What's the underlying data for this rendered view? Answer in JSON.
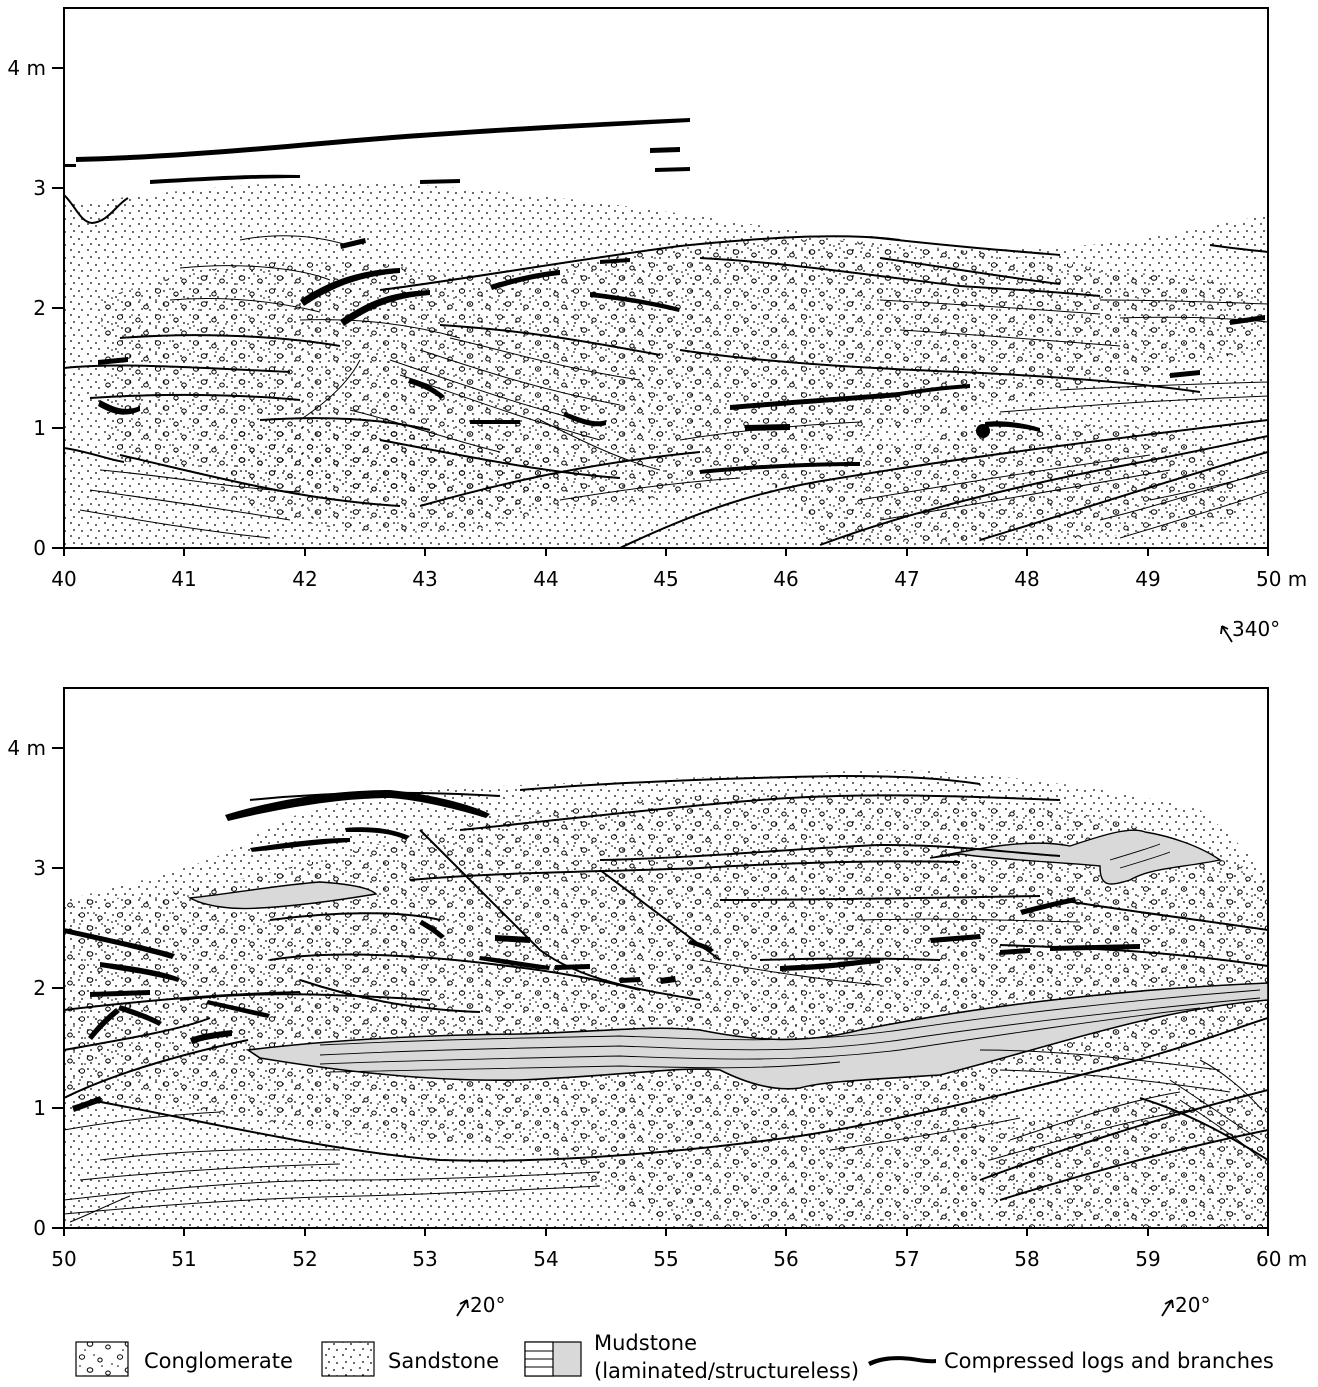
{
  "panels": [
    {
      "x_ticks": [
        "40",
        "41",
        "42",
        "43",
        "44",
        "45",
        "46",
        "47",
        "48",
        "49",
        "50 m"
      ],
      "y_ticks": [
        "0",
        "1",
        "2",
        "3",
        "4 m"
      ],
      "orientations": [
        "340°"
      ]
    },
    {
      "x_ticks": [
        "50",
        "51",
        "52",
        "53",
        "54",
        "55",
        "56",
        "57",
        "58",
        "59",
        "60 m"
      ],
      "y_ticks": [
        "0",
        "1",
        "2",
        "3",
        "4 m"
      ],
      "orientations": [
        "20°",
        "20°"
      ]
    }
  ],
  "legend": {
    "conglomerate": "Conglomerate",
    "sandstone": "Sandstone",
    "mudstone_line1": "Mudstone",
    "mudstone_line2": "(laminated/structureless)",
    "logs": "Compressed logs and branches"
  },
  "colors": {
    "ink": "#000000",
    "mudstone_fill": "#d9d9d9",
    "background": "#ffffff"
  }
}
